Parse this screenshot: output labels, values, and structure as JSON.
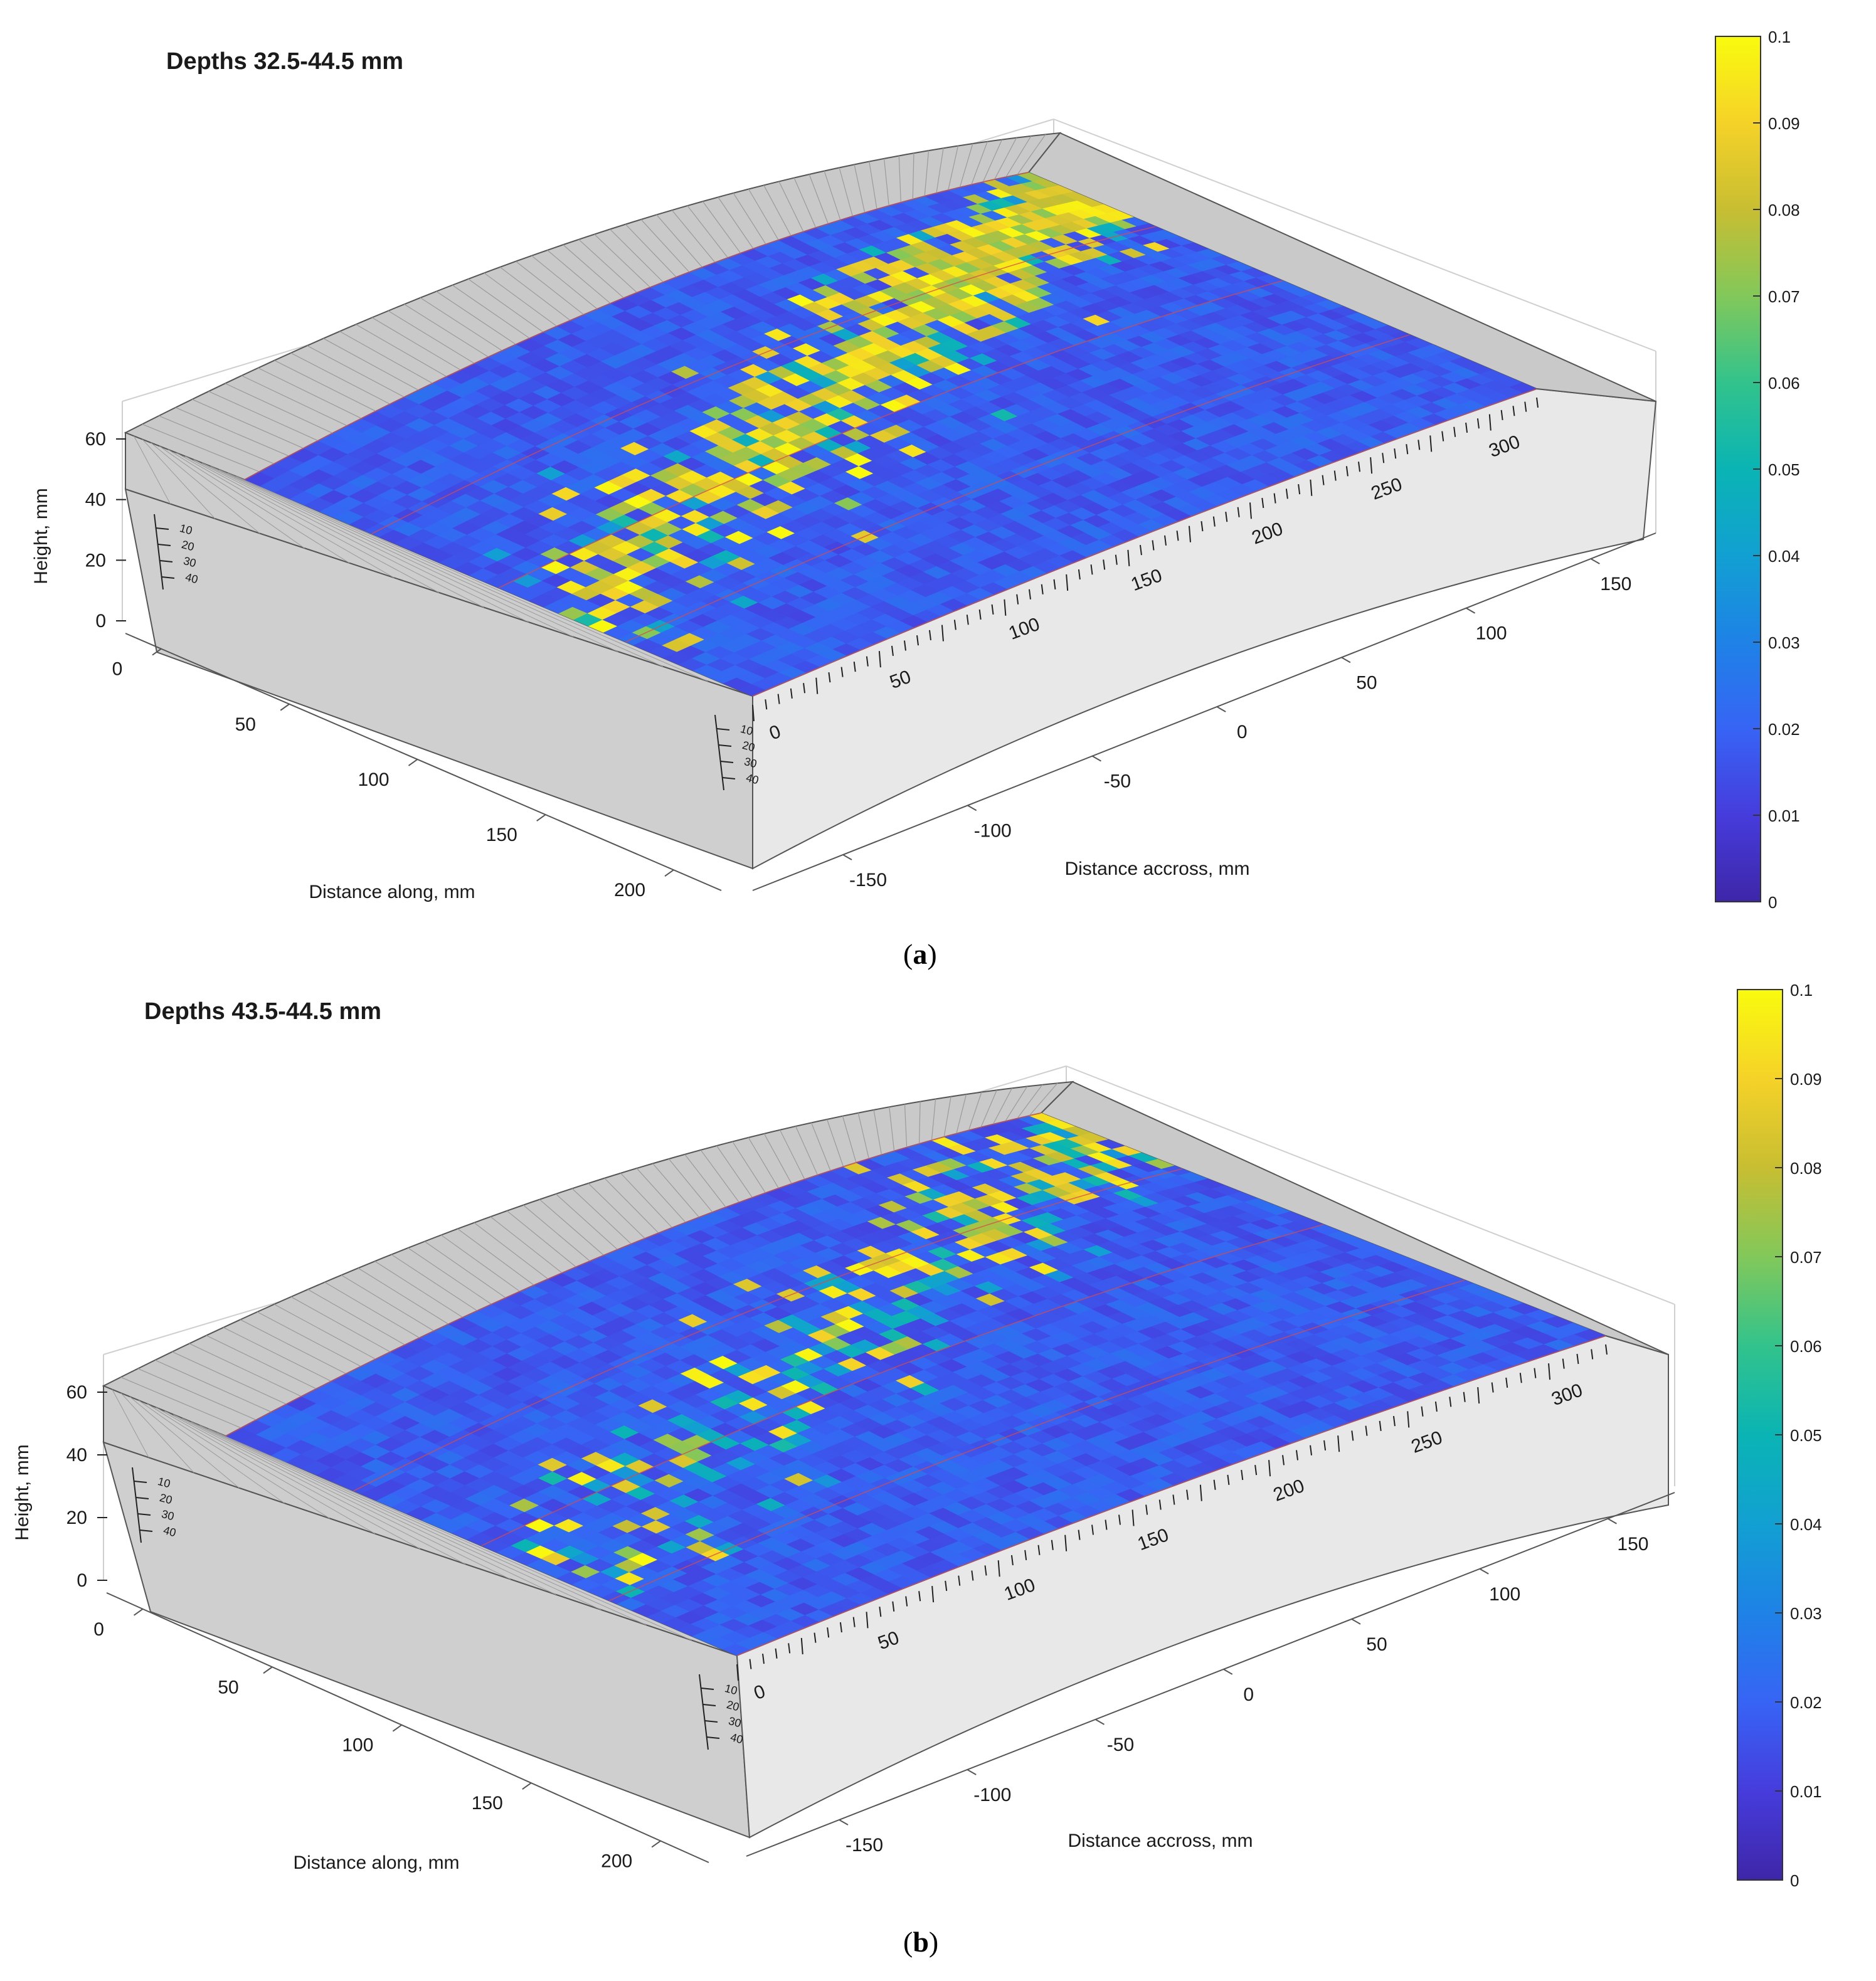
{
  "chart_data": [
    {
      "type": "heatmap",
      "subtype": "3d-surface-curved-block",
      "title": "Depths 32.5-44.5 mm",
      "panel_label": "a",
      "xlabel": "Distance accross, mm",
      "ylabel": "Distance along, mm",
      "zlabel": "Height, mm",
      "x_ticks": [
        -150,
        -100,
        -50,
        0,
        50,
        100,
        150
      ],
      "y_ticks": [
        0,
        50,
        100,
        150,
        200
      ],
      "z_ticks": [
        0,
        20,
        40,
        60
      ],
      "arc_scale_ticks": [
        0,
        50,
        100,
        150,
        200,
        250,
        300
      ],
      "depth_scale_ticks": [
        10,
        20,
        30,
        40
      ],
      "colorbar": {
        "min": 0,
        "max": 0.1,
        "ticks": [
          "0",
          "0.01",
          "0.02",
          "0.03",
          "0.04",
          "0.05",
          "0.06",
          "0.07",
          "0.08",
          "0.09",
          "0.1"
        ],
        "colormap": "parula"
      },
      "hotspot_intensity": 1.0,
      "colors": {
        "low": "#3e26a8",
        "mid": "#1e78e0",
        "high": "#f9fb0e",
        "block_top": "#c8c8c8",
        "block_side": "#e6e6e6",
        "grid_line": "#d94a4a"
      }
    },
    {
      "type": "heatmap",
      "subtype": "3d-surface-curved-block",
      "title": "Depths 43.5-44.5 mm",
      "panel_label": "b",
      "xlabel": "Distance accross, mm",
      "ylabel": "Distance along, mm",
      "zlabel": "Height, mm",
      "x_ticks": [
        -150,
        -100,
        -50,
        0,
        50,
        100,
        150
      ],
      "y_ticks": [
        0,
        50,
        100,
        150,
        200
      ],
      "z_ticks": [
        0,
        20,
        40,
        60
      ],
      "arc_scale_ticks": [
        0,
        50,
        100,
        150,
        200,
        250,
        300
      ],
      "depth_scale_ticks": [
        10,
        20,
        30,
        40
      ],
      "colorbar": {
        "min": 0,
        "max": 0.1,
        "ticks": [
          "0",
          "0.01",
          "0.02",
          "0.03",
          "0.04",
          "0.05",
          "0.06",
          "0.07",
          "0.08",
          "0.09",
          "0.1"
        ],
        "colormap": "parula"
      },
      "hotspot_intensity": 0.45,
      "colors": {
        "low": "#3e26a8",
        "mid": "#1e78e0",
        "high": "#f9fb0e",
        "block_top": "#c8c8c8",
        "block_side": "#e6e6e6",
        "grid_line": "#d94a4a"
      }
    }
  ]
}
